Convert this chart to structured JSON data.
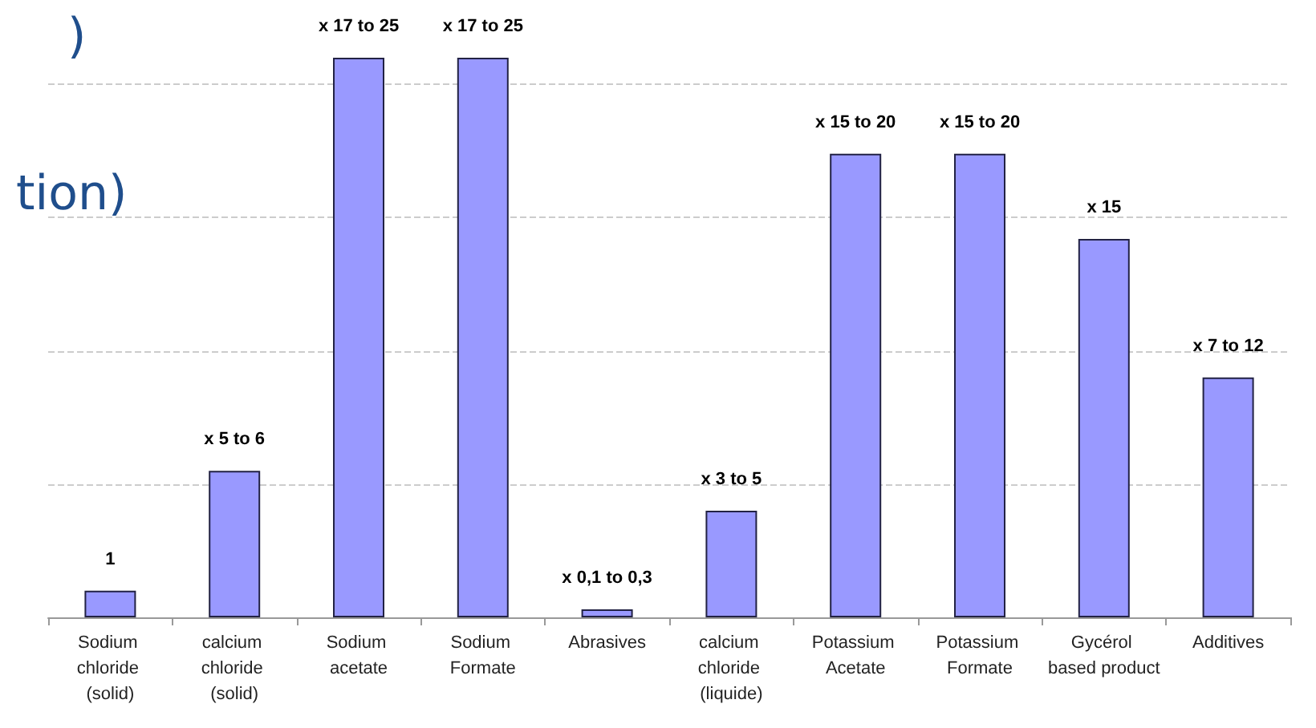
{
  "chart_data": {
    "type": "bar",
    "annotations": [
      ")",
      "tion)"
    ],
    "categories": [
      "Sodium chloride (solid)",
      "calcium chloride (solid)",
      "Sodium acetate",
      "Sodium Formate",
      "Abrasives",
      "calcium chloride (liquide)",
      "Potassium Acetate",
      "Potassium Formate",
      "Gycérol based product",
      "Additives"
    ],
    "values": [
      1,
      5.5,
      21,
      21,
      0.3,
      4,
      17.4,
      17.4,
      14.2,
      9
    ],
    "value_labels": [
      "1",
      "x 5 to 6",
      "x 17 to 25",
      "x 17 to 25",
      "x 0,1 to 0,3",
      "x 3 to 5",
      "x 15 to 20",
      "x 15 to 20",
      "x 15",
      "x 7 to 12"
    ],
    "yticks": [
      {
        "value": 0,
        "label": null
      },
      {
        "value": 5,
        "label": null
      },
      {
        "value": 10,
        "label": null
      },
      {
        "value": 15,
        "label": null
      },
      {
        "value": 20,
        "label": null
      }
    ],
    "tick_labels": "x",
    "color": "#9999ff",
    "grid": "y"
  }
}
